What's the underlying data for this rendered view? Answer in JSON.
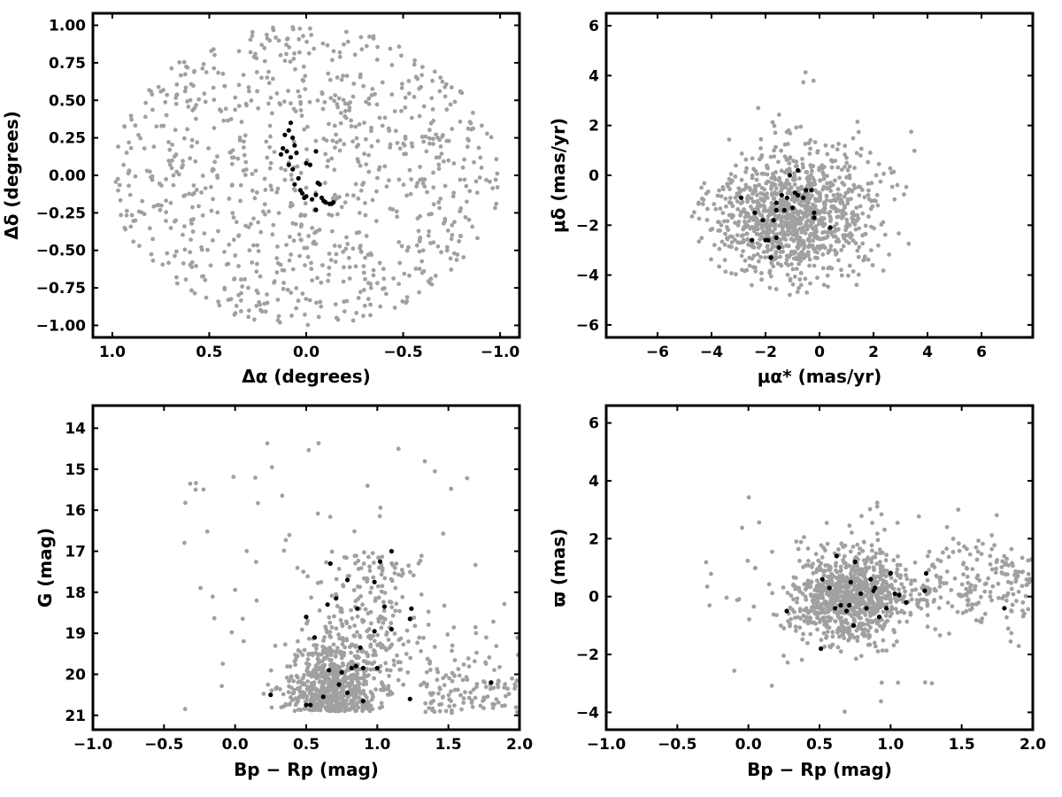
{
  "chart_data": [
    {
      "type": "scatter",
      "id": "sky-position",
      "xlabel": "Δα (degrees)",
      "ylabel": "Δδ (degrees)",
      "xlim": [
        1.1,
        -1.1
      ],
      "ylim": [
        -1.08,
        1.08
      ],
      "x_inverted": true,
      "xticks": [
        1.0,
        0.5,
        0.0,
        -0.5,
        -1.0
      ],
      "xtick_labels": [
        "1.0",
        "0.5",
        "0.0",
        "−0.5",
        "−1.0"
      ],
      "yticks": [
        -1.0,
        -0.75,
        -0.5,
        -0.25,
        0.0,
        0.25,
        0.5,
        0.75,
        1.0
      ],
      "ytick_labels": [
        "−1.00",
        "−0.75",
        "−0.50",
        "−0.25",
        "0.00",
        "0.25",
        "0.50",
        "0.75",
        "1.00"
      ],
      "series": [
        {
          "role": "field-stars",
          "color": "#a0a0a0",
          "distribution": "uniform-disk",
          "center": [
            0,
            0
          ],
          "radius": 1.0,
          "count": 900
        },
        {
          "role": "members",
          "color": "#000000",
          "points": [
            [
              0.08,
              0.35
            ],
            [
              0.09,
              0.3
            ],
            [
              0.07,
              0.25
            ],
            [
              0.11,
              0.27
            ],
            [
              0.12,
              0.18
            ],
            [
              0.1,
              0.16
            ],
            [
              0.08,
              0.12
            ],
            [
              0.13,
              0.14
            ],
            [
              0.06,
              0.2
            ],
            [
              0.05,
              0.15
            ],
            [
              0.09,
              0.07
            ],
            [
              0.07,
              0.04
            ],
            [
              0.04,
              -0.02
            ],
            [
              0.06,
              -0.06
            ],
            [
              0.03,
              -0.1
            ],
            [
              0.0,
              0.08
            ],
            [
              -0.02,
              0.07
            ],
            [
              -0.05,
              0.16
            ],
            [
              -0.06,
              -0.05
            ],
            [
              -0.07,
              -0.06
            ],
            [
              -0.05,
              -0.13
            ],
            [
              -0.08,
              -0.15
            ],
            [
              -0.03,
              -0.16
            ],
            [
              0.0,
              -0.14
            ],
            [
              0.02,
              -0.12
            ],
            [
              -0.1,
              -0.18
            ],
            [
              -0.13,
              -0.19
            ],
            [
              -0.14,
              -0.18
            ],
            [
              -0.09,
              -0.17
            ],
            [
              -0.05,
              -0.23
            ],
            [
              -0.12,
              -0.19
            ],
            [
              0.01,
              -0.15
            ]
          ]
        }
      ]
    },
    {
      "type": "scatter",
      "id": "proper-motion",
      "xlabel": "μα* (mas/yr)",
      "ylabel": "μδ (mas/yr)",
      "xlim": [
        -7.9,
        7.9
      ],
      "ylim": [
        -6.5,
        6.5
      ],
      "xticks": [
        -6,
        -4,
        -2,
        0,
        2,
        4,
        6
      ],
      "xtick_labels": [
        "−6",
        "−4",
        "−2",
        "0",
        "2",
        "4",
        "6"
      ],
      "yticks": [
        -6,
        -4,
        -2,
        0,
        2,
        4,
        6
      ],
      "ytick_labels": [
        "−6",
        "−4",
        "−2",
        "0",
        "2",
        "4",
        "6"
      ],
      "series": [
        {
          "role": "field-stars",
          "color": "#a0a0a0",
          "distribution": "clipped-gaussian",
          "center": [
            -1.0,
            -1.6
          ],
          "sigma": [
            1.5,
            1.3
          ],
          "clip_center": [
            -0.5,
            -1.7
          ],
          "clip_radius": [
            4.2,
            3.2
          ],
          "outlier_fraction": 0.04,
          "count": 1100
        },
        {
          "role": "members",
          "color": "#000000",
          "points": [
            [
              -0.8,
              0.2
            ],
            [
              -1.1,
              0.0
            ],
            [
              -0.5,
              -0.6
            ],
            [
              -0.6,
              -0.9
            ],
            [
              -0.9,
              -0.7
            ],
            [
              -1.2,
              -0.9
            ],
            [
              -1.4,
              -0.8
            ],
            [
              -1.6,
              -1.1
            ],
            [
              -1.0,
              -1.3
            ],
            [
              -0.3,
              -0.6
            ],
            [
              -0.2,
              -1.5
            ],
            [
              -0.2,
              -1.7
            ],
            [
              0.4,
              -2.1
            ],
            [
              -1.6,
              -1.4
            ],
            [
              -1.7,
              -1.8
            ],
            [
              -2.1,
              -1.8
            ],
            [
              -1.9,
              -2.6
            ],
            [
              -1.6,
              -2.5
            ],
            [
              -1.5,
              -2.9
            ],
            [
              -2.0,
              -2.6
            ],
            [
              -2.5,
              -2.6
            ],
            [
              -2.4,
              -1.5
            ],
            [
              -2.9,
              -0.9
            ],
            [
              -1.8,
              -3.3
            ],
            [
              -1.3,
              -1.4
            ],
            [
              -0.8,
              -0.8
            ]
          ]
        }
      ]
    },
    {
      "type": "scatter",
      "id": "color-magnitude",
      "xlabel": "Bp − Rp (mag)",
      "ylabel": "G (mag)",
      "xlim": [
        -1.0,
        2.0
      ],
      "ylim": [
        21.35,
        13.45
      ],
      "y_inverted": true,
      "xticks": [
        -1.0,
        -0.5,
        0.0,
        0.5,
        1.0,
        1.5,
        2.0
      ],
      "xtick_labels": [
        "−1.0",
        "−0.5",
        "0.0",
        "0.5",
        "1.0",
        "1.5",
        "2.0"
      ],
      "yticks": [
        14,
        15,
        16,
        17,
        18,
        19,
        20,
        21
      ],
      "ytick_labels": [
        "14",
        "15",
        "16",
        "17",
        "18",
        "19",
        "20",
        "21"
      ],
      "series": [
        {
          "role": "field-stars",
          "color": "#a0a0a0",
          "distribution": "main-sequence-band",
          "count": 1050
        },
        {
          "role": "members",
          "color": "#000000",
          "points": [
            [
              0.25,
              20.5
            ],
            [
              0.5,
              20.75
            ],
            [
              0.53,
              20.75
            ],
            [
              0.62,
              20.55
            ],
            [
              0.9,
              20.65
            ],
            [
              1.23,
              20.6
            ],
            [
              0.79,
              20.45
            ],
            [
              1.8,
              20.2
            ],
            [
              0.73,
              20.25
            ],
            [
              0.66,
              19.9
            ],
            [
              0.75,
              19.95
            ],
            [
              0.82,
              19.85
            ],
            [
              0.85,
              19.8
            ],
            [
              0.9,
              19.85
            ],
            [
              1.0,
              19.85
            ],
            [
              0.88,
              19.35
            ],
            [
              0.56,
              19.1
            ],
            [
              0.98,
              18.95
            ],
            [
              1.1,
              18.9
            ],
            [
              1.23,
              18.65
            ],
            [
              1.24,
              18.4
            ],
            [
              0.5,
              18.6
            ],
            [
              0.65,
              18.3
            ],
            [
              0.71,
              18.15
            ],
            [
              0.86,
              18.4
            ],
            [
              1.05,
              18.35
            ],
            [
              0.79,
              17.7
            ],
            [
              0.98,
              17.75
            ],
            [
              0.67,
              17.3
            ],
            [
              1.02,
              17.25
            ],
            [
              1.1,
              17.0
            ]
          ]
        }
      ]
    },
    {
      "type": "scatter",
      "id": "parallax",
      "xlabel": "Bp − Rp (mag)",
      "ylabel": "ϖ (mas)",
      "xlim": [
        -1.0,
        2.0
      ],
      "ylim": [
        -4.6,
        6.6
      ],
      "xticks": [
        -1.0,
        -0.5,
        0.0,
        0.5,
        1.0,
        1.5,
        2.0
      ],
      "xtick_labels": [
        "−1.0",
        "−0.5",
        "0.0",
        "0.5",
        "1.0",
        "1.5",
        "2.0"
      ],
      "yticks": [
        -4,
        -2,
        0,
        2,
        4,
        6
      ],
      "ytick_labels": [
        "−4",
        "−2",
        "0",
        "2",
        "4",
        "6"
      ],
      "series": [
        {
          "role": "field-stars",
          "color": "#a0a0a0",
          "distribution": "gaussian-blob-with-tail",
          "count": 1150
        },
        {
          "role": "members",
          "color": "#000000",
          "points": [
            [
              0.27,
              -0.5
            ],
            [
              0.51,
              -1.8
            ],
            [
              0.52,
              0.6
            ],
            [
              0.57,
              0.3
            ],
            [
              0.62,
              1.4
            ],
            [
              0.65,
              -0.3
            ],
            [
              0.69,
              -0.5
            ],
            [
              0.71,
              -0.3
            ],
            [
              0.74,
              -1.0
            ],
            [
              0.75,
              1.2
            ],
            [
              0.79,
              0.1
            ],
            [
              0.83,
              -0.4
            ],
            [
              0.86,
              0.6
            ],
            [
              0.88,
              0.2
            ],
            [
              0.89,
              0.3
            ],
            [
              0.92,
              -0.7
            ],
            [
              0.97,
              -0.4
            ],
            [
              1.0,
              0.8
            ],
            [
              1.03,
              0.1
            ],
            [
              1.06,
              0.05
            ],
            [
              1.11,
              -0.2
            ],
            [
              1.24,
              0.2
            ],
            [
              1.25,
              0.8
            ],
            [
              1.8,
              -0.4
            ],
            [
              0.61,
              -0.4
            ],
            [
              0.72,
              0.5
            ]
          ]
        }
      ]
    }
  ]
}
